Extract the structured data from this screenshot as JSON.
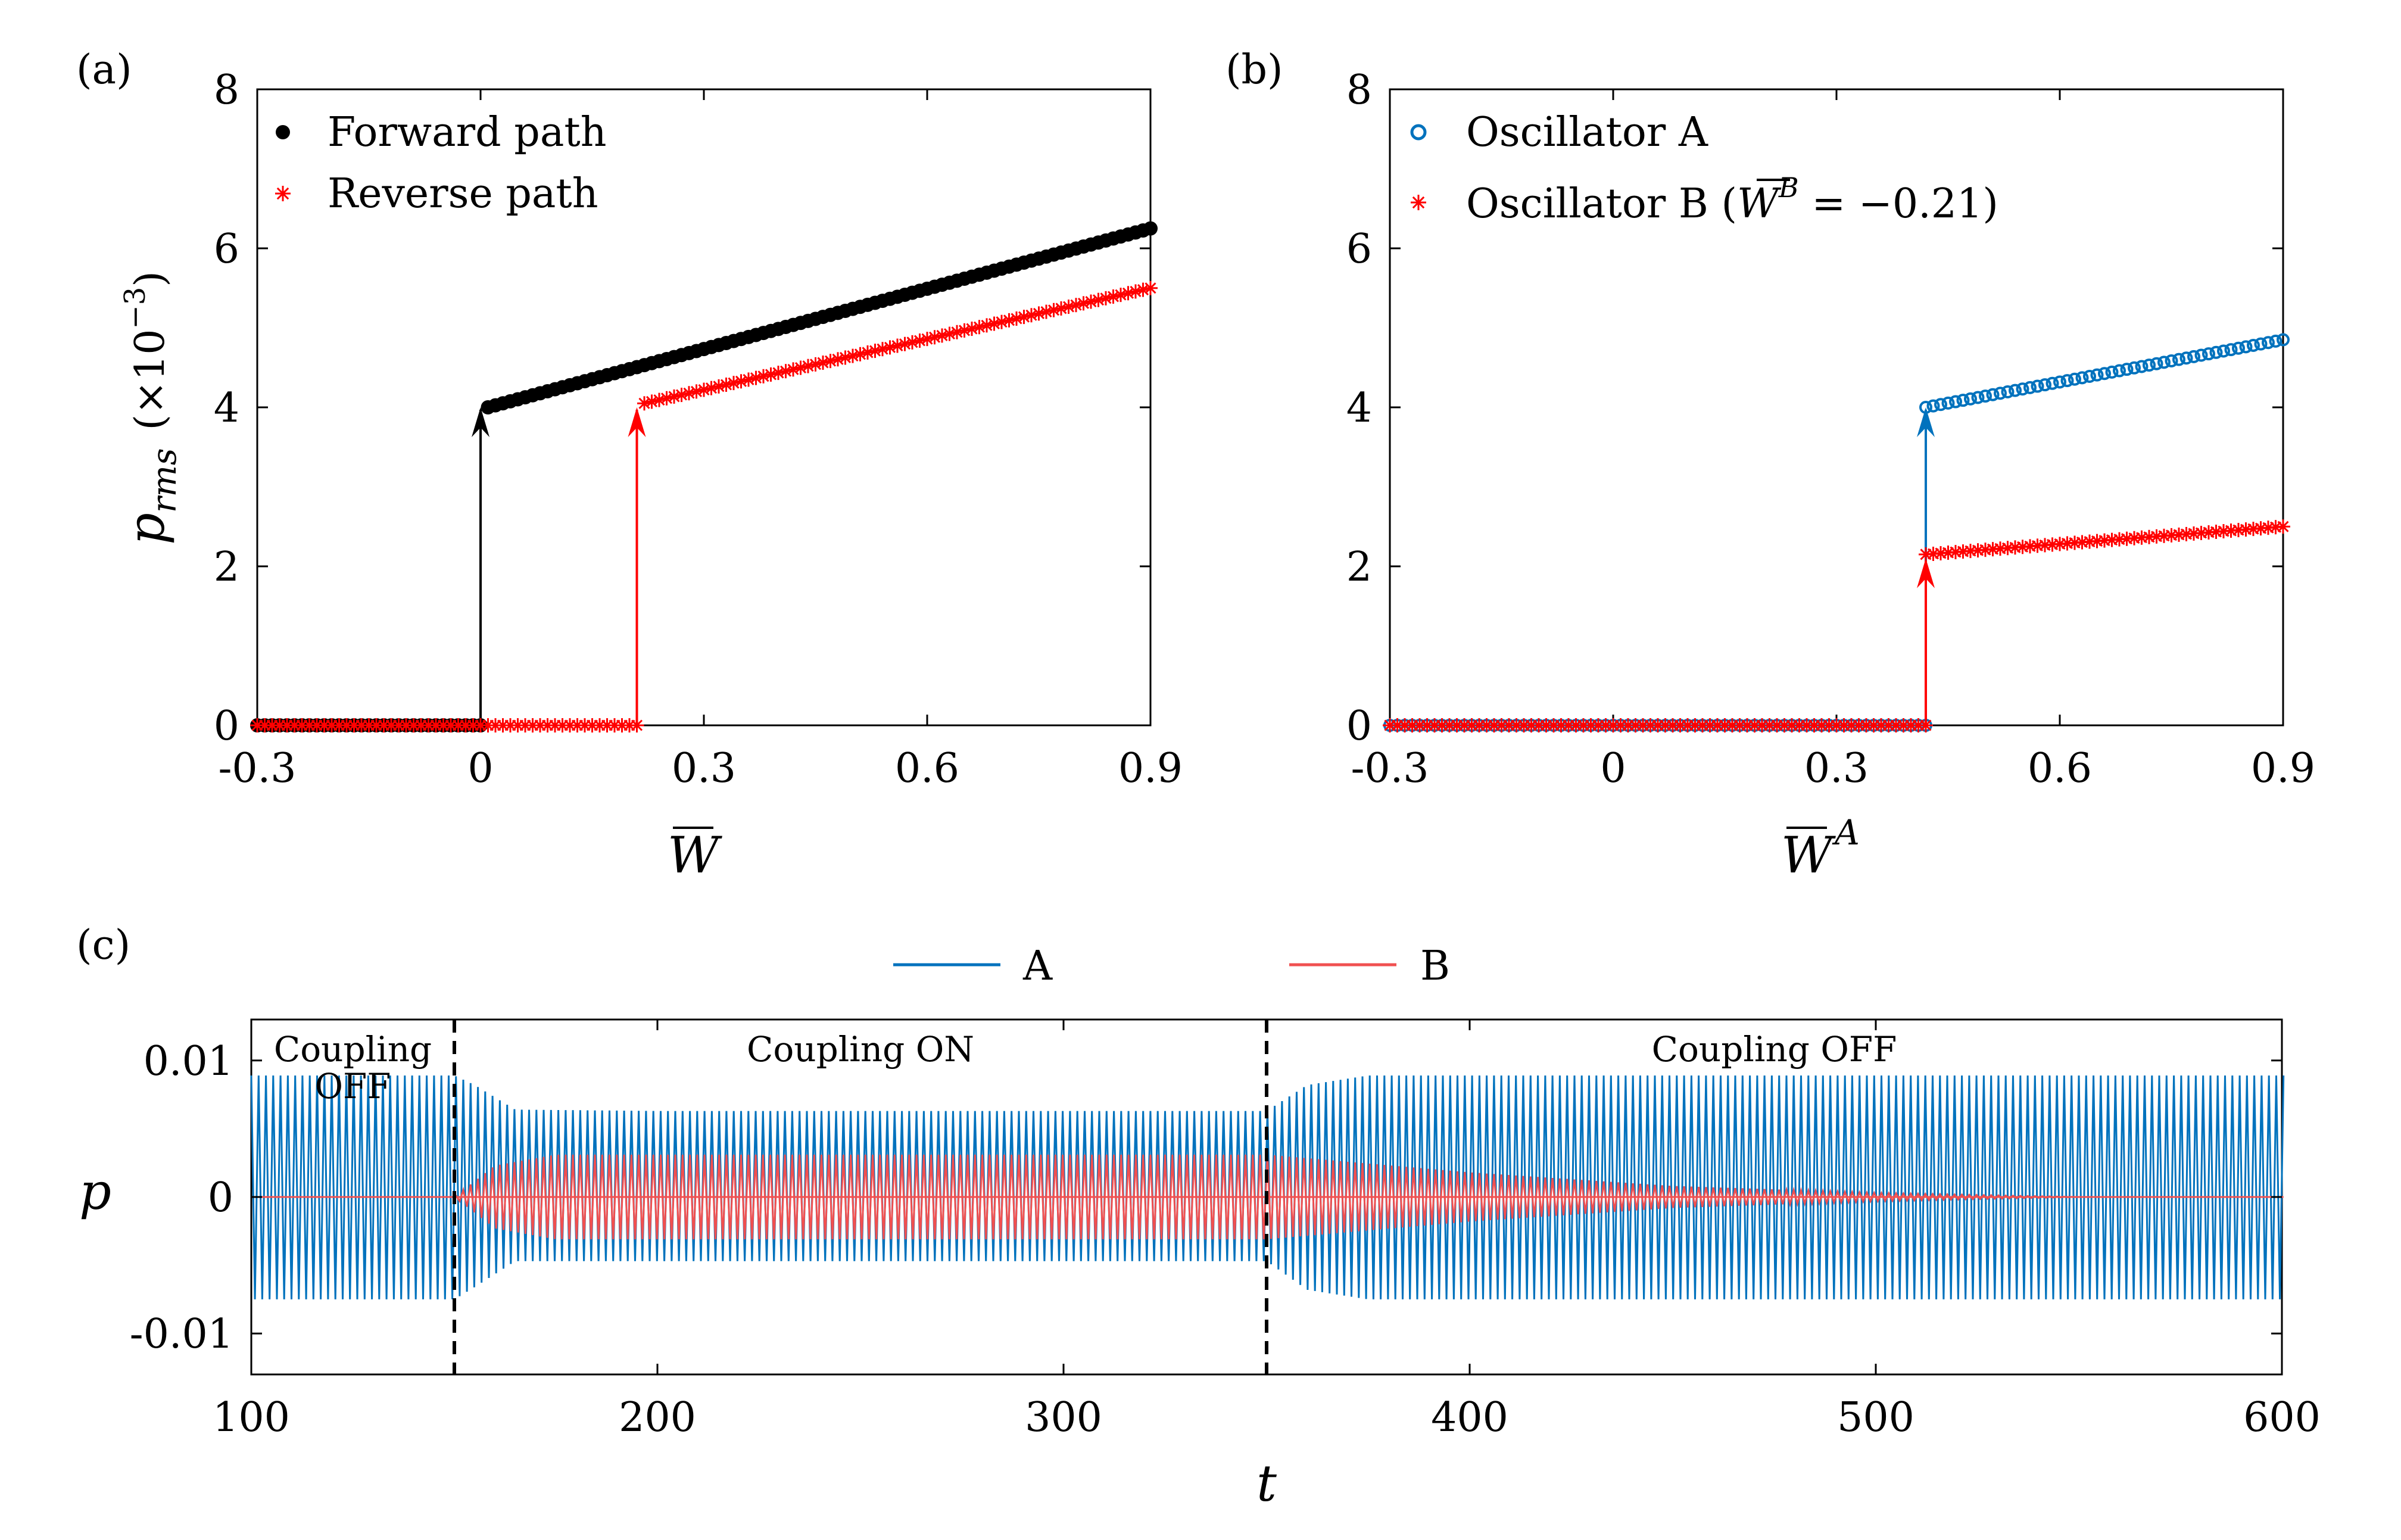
{
  "figure": {
    "colors": {
      "forward": "#000000",
      "reverse": "#ff0000",
      "osc_a": "#0072bd",
      "osc_b": "#ff0000",
      "line_b": "#f05050",
      "axis": "#000000"
    }
  },
  "chart_data": [
    {
      "panel": "(a)",
      "type": "scatter",
      "xlabel": "W",
      "ylabel": "p",
      "ylabel_subscript": "rms",
      "ylabel_units": "(×10",
      "ylabel_exponent": "−3",
      "ylabel_close": ")",
      "xlim": [
        -0.3,
        0.9
      ],
      "ylim": [
        0,
        8
      ],
      "xticks": [
        -0.3,
        0,
        0.3,
        0.6,
        0.9
      ],
      "xtick_labels": [
        "-0.3",
        "0",
        "0.3",
        "0.6",
        "0.9"
      ],
      "yticks": [
        0,
        2,
        4,
        6,
        8
      ],
      "ytick_labels": [
        "0",
        "2",
        "4",
        "6",
        "8"
      ],
      "legend_position": "top-left",
      "series": [
        {
          "name": "Forward path",
          "marker": "filled-circle",
          "color": "#000000",
          "segments": [
            {
              "x_start": -0.3,
              "x_end": 0.0,
              "y_start": 0.0,
              "y_end": 0.0,
              "step": 0.01
            },
            {
              "x_start": 0.01,
              "x_end": 0.9,
              "y_start": 4.0,
              "y_end": 6.25,
              "step": 0.01
            }
          ],
          "jump": {
            "x": 0.0,
            "y_from": 0.0,
            "y_to": 4.0
          }
        },
        {
          "name": "Reverse path",
          "marker": "asterisk",
          "color": "#ff0000",
          "segments": [
            {
              "x_start": -0.3,
              "x_end": 0.21,
              "y_start": 0.0,
              "y_end": 0.0,
              "step": 0.01
            },
            {
              "x_start": 0.22,
              "x_end": 0.9,
              "y_start": 4.05,
              "y_end": 5.5,
              "step": 0.01
            }
          ],
          "jump": {
            "x": 0.21,
            "y_from": 0.0,
            "y_to": 4.0
          }
        }
      ]
    },
    {
      "panel": "(b)",
      "type": "scatter",
      "xlabel": "W",
      "xlabel_superscript": "A",
      "xlim": [
        -0.3,
        0.9
      ],
      "ylim": [
        0,
        8
      ],
      "xticks": [
        -0.3,
        0,
        0.3,
        0.6,
        0.9
      ],
      "xtick_labels": [
        "-0.3",
        "0",
        "0.3",
        "0.6",
        "0.9"
      ],
      "yticks": [
        0,
        2,
        4,
        6,
        8
      ],
      "ytick_labels": [
        "0",
        "2",
        "4",
        "6",
        "8"
      ],
      "legend_position": "top-left",
      "series": [
        {
          "name": "Oscillator A",
          "marker": "open-circle",
          "color": "#0072bd",
          "segments": [
            {
              "x_start": -0.3,
              "x_end": 0.42,
              "y_start": 0.0,
              "y_end": 0.0,
              "step": 0.01
            },
            {
              "x_start": 0.42,
              "x_end": 0.9,
              "y_start": 4.0,
              "y_end": 4.85,
              "step": 0.01
            }
          ],
          "jump": {
            "x": 0.42,
            "y_from": 0.0,
            "y_to": 4.0
          }
        },
        {
          "name": "Oscillator B (",
          "name_sym": "W",
          "name_sup": "B",
          "name_tail": " = −0.21)",
          "marker": "asterisk",
          "color": "#ff0000",
          "segments": [
            {
              "x_start": -0.3,
              "x_end": 0.42,
              "y_start": 0.0,
              "y_end": 0.0,
              "step": 0.01
            },
            {
              "x_start": 0.42,
              "x_end": 0.9,
              "y_start": 2.15,
              "y_end": 2.5,
              "step": 0.01
            }
          ],
          "jump": {
            "x": 0.42,
            "y_from": 0.0,
            "y_to": 2.1
          }
        }
      ]
    },
    {
      "panel": "(c)",
      "type": "line",
      "xlabel": "t",
      "ylabel": "p",
      "xlim": [
        100,
        600
      ],
      "ylim": [
        -0.013,
        0.013
      ],
      "xticks": [
        100,
        200,
        300,
        400,
        500,
        600
      ],
      "xtick_labels": [
        "100",
        "200",
        "300",
        "400",
        "500",
        "600"
      ],
      "yticks": [
        -0.01,
        0,
        0.01
      ],
      "ytick_labels": [
        "-0.01",
        "0",
        "0.01"
      ],
      "legend_position": "top-center",
      "coupling_switch_times": [
        150,
        350
      ],
      "annotations": [
        {
          "text_lines": [
            "Coupling",
            "OFF"
          ],
          "x": 125
        },
        {
          "text_lines": [
            "Coupling ON"
          ],
          "x": 250
        },
        {
          "text_lines": [
            "Coupling OFF"
          ],
          "x": 475
        }
      ],
      "series": [
        {
          "name": "A",
          "color": "#0072bd",
          "envelope": [
            {
              "t": 100,
              "upper": 0.0089,
              "lower": -0.0075
            },
            {
              "t": 150,
              "upper": 0.0089,
              "lower": -0.0075
            },
            {
              "t": 155,
              "upper": 0.0082,
              "lower": -0.0066
            },
            {
              "t": 165,
              "upper": 0.0064,
              "lower": -0.0047
            },
            {
              "t": 200,
              "upper": 0.0063,
              "lower": -0.0047
            },
            {
              "t": 350,
              "upper": 0.0063,
              "lower": -0.0047
            },
            {
              "t": 360,
              "upper": 0.0082,
              "lower": -0.0068
            },
            {
              "t": 375,
              "upper": 0.0089,
              "lower": -0.0075
            },
            {
              "t": 600,
              "upper": 0.0089,
              "lower": -0.0075
            }
          ]
        },
        {
          "name": "B",
          "color": "#f05050",
          "envelope": [
            {
              "t": 100,
              "upper": 0.0,
              "lower": 0.0
            },
            {
              "t": 150,
              "upper": 0.0,
              "lower": 0.0
            },
            {
              "t": 160,
              "upper": 0.0023,
              "lower": -0.0023
            },
            {
              "t": 175,
              "upper": 0.0031,
              "lower": -0.0031
            },
            {
              "t": 350,
              "upper": 0.0031,
              "lower": -0.0031
            },
            {
              "t": 400,
              "upper": 0.0018,
              "lower": -0.0018
            },
            {
              "t": 450,
              "upper": 0.0008,
              "lower": -0.0008
            },
            {
              "t": 500,
              "upper": 0.0003,
              "lower": -0.0003
            },
            {
              "t": 550,
              "upper": 0.0,
              "lower": 0.0
            },
            {
              "t": 600,
              "upper": 0.0,
              "lower": 0.0
            }
          ]
        }
      ]
    }
  ]
}
